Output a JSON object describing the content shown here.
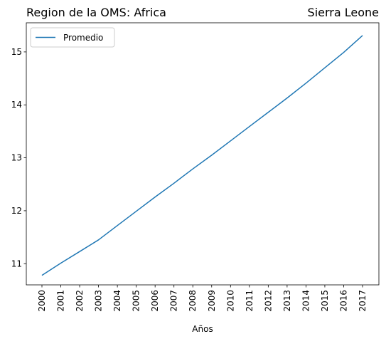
{
  "chart_data": {
    "type": "line",
    "title_left": "Region de la OMS: Africa",
    "title_right": "Sierra Leone",
    "xlabel": "Años",
    "ylabel": "",
    "x": [
      "2000",
      "2001",
      "2002",
      "2003",
      "2004",
      "2005",
      "2006",
      "2007",
      "2008",
      "2009",
      "2010",
      "2011",
      "2012",
      "2013",
      "2014",
      "2015",
      "2016",
      "2017"
    ],
    "series": [
      {
        "name": "Promedio",
        "color": "#1f77b4",
        "values": [
          10.78,
          11.01,
          11.23,
          11.45,
          11.72,
          11.99,
          12.26,
          12.52,
          12.79,
          13.05,
          13.32,
          13.59,
          13.86,
          14.13,
          14.41,
          14.7,
          14.99,
          15.31
        ]
      }
    ],
    "yticks": [
      11,
      12,
      13,
      14,
      15
    ],
    "ylim": [
      10.6,
      15.55
    ],
    "legend_position": "upper left",
    "grid": false
  }
}
